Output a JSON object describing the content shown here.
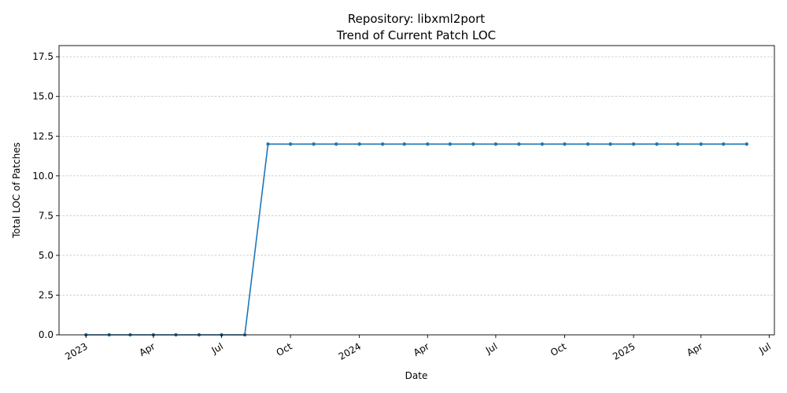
{
  "chart_data": {
    "type": "line",
    "title_line1": "Repository: libxml2port",
    "title_line2": "Trend of Current Patch LOC",
    "xlabel": "Date",
    "ylabel": "Total LOC of Patches",
    "xlim": [
      "2022-11-26",
      "2025-07-08"
    ],
    "ylim": [
      0,
      18.2
    ],
    "grid": "y-only, dashed",
    "legend": "none",
    "series_color": "#1f77b4",
    "x_ticks": [
      {
        "date": "2023-01-01",
        "label": "2023"
      },
      {
        "date": "2023-04-01",
        "label": "Apr"
      },
      {
        "date": "2023-07-01",
        "label": "Jul"
      },
      {
        "date": "2023-10-01",
        "label": "Oct"
      },
      {
        "date": "2024-01-01",
        "label": "2024"
      },
      {
        "date": "2024-04-01",
        "label": "Apr"
      },
      {
        "date": "2024-07-01",
        "label": "Jul"
      },
      {
        "date": "2024-10-01",
        "label": "Oct"
      },
      {
        "date": "2025-01-01",
        "label": "2025"
      },
      {
        "date": "2025-04-01",
        "label": "Apr"
      },
      {
        "date": "2025-07-01",
        "label": "Jul"
      }
    ],
    "y_ticks": [
      {
        "value": 0,
        "label": "0.0"
      },
      {
        "value": 2.5,
        "label": "2.5"
      },
      {
        "value": 5,
        "label": "5.0"
      },
      {
        "value": 7.5,
        "label": "7.5"
      },
      {
        "value": 10,
        "label": "10.0"
      },
      {
        "value": 12.5,
        "label": "12.5"
      },
      {
        "value": 15,
        "label": "15.0"
      },
      {
        "value": 17.5,
        "label": "17.5"
      }
    ],
    "series": [
      {
        "points": [
          {
            "x": "2023-01-01",
            "y": 0
          },
          {
            "x": "2023-02-01",
            "y": 0
          },
          {
            "x": "2023-03-01",
            "y": 0
          },
          {
            "x": "2023-04-01",
            "y": 0
          },
          {
            "x": "2023-05-01",
            "y": 0
          },
          {
            "x": "2023-06-01",
            "y": 0
          },
          {
            "x": "2023-07-01",
            "y": 0
          },
          {
            "x": "2023-08-01",
            "y": 0
          },
          {
            "x": "2023-09-01",
            "y": 12
          },
          {
            "x": "2023-10-01",
            "y": 12
          },
          {
            "x": "2023-11-01",
            "y": 12
          },
          {
            "x": "2023-12-01",
            "y": 12
          },
          {
            "x": "2024-01-01",
            "y": 12
          },
          {
            "x": "2024-02-01",
            "y": 12
          },
          {
            "x": "2024-03-01",
            "y": 12
          },
          {
            "x": "2024-04-01",
            "y": 12
          },
          {
            "x": "2024-05-01",
            "y": 12
          },
          {
            "x": "2024-06-01",
            "y": 12
          },
          {
            "x": "2024-07-01",
            "y": 12
          },
          {
            "x": "2024-08-01",
            "y": 12
          },
          {
            "x": "2024-09-01",
            "y": 12
          },
          {
            "x": "2024-10-01",
            "y": 12
          },
          {
            "x": "2024-11-01",
            "y": 12
          },
          {
            "x": "2024-12-01",
            "y": 12
          },
          {
            "x": "2025-01-01",
            "y": 12
          },
          {
            "x": "2025-02-01",
            "y": 12
          },
          {
            "x": "2025-03-01",
            "y": 12
          },
          {
            "x": "2025-04-01",
            "y": 12
          },
          {
            "x": "2025-05-01",
            "y": 12
          },
          {
            "x": "2025-06-01",
            "y": 12
          }
        ]
      }
    ]
  }
}
